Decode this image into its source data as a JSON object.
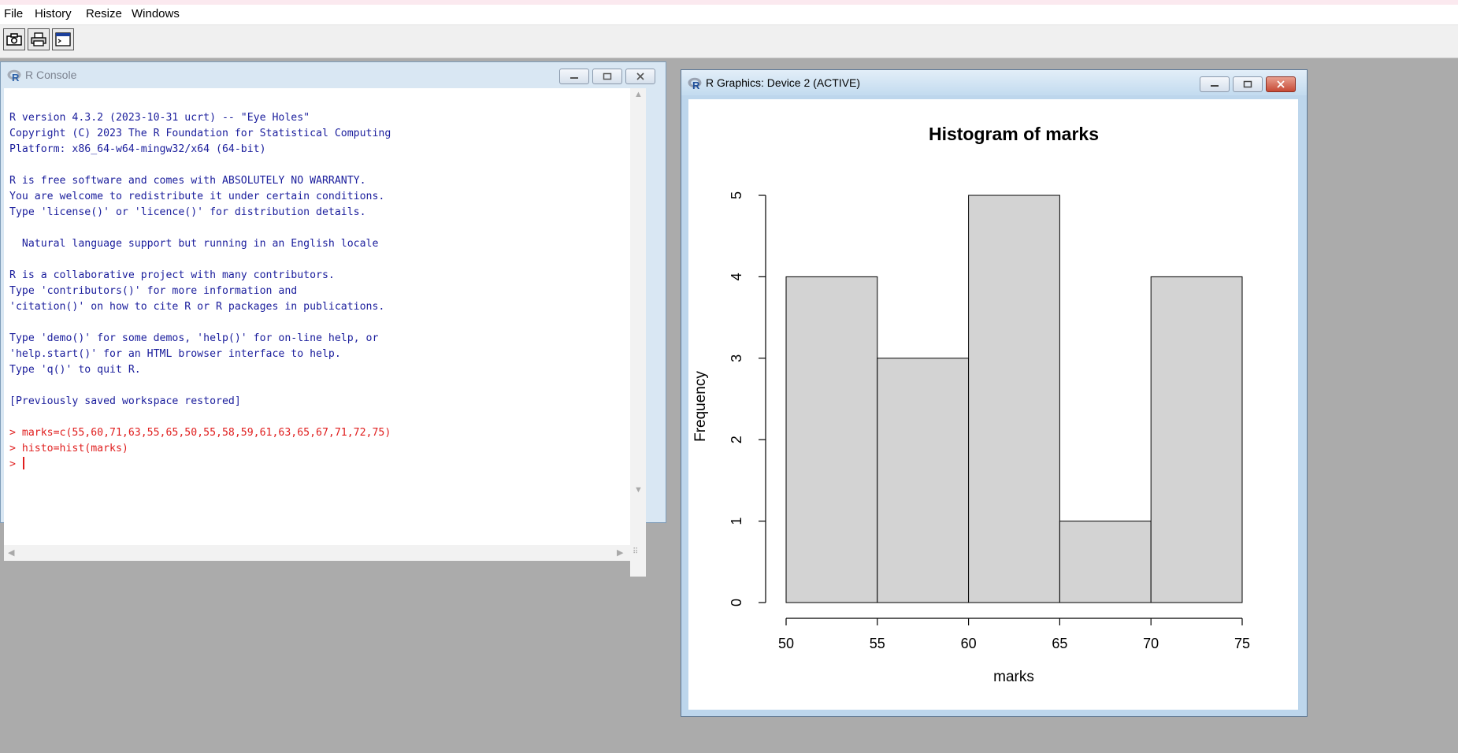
{
  "menu": {
    "file": "File",
    "history": "History",
    "resize": "Resize",
    "windows": "Windows"
  },
  "toolbar": {
    "icons": [
      "camera-icon",
      "print-icon",
      "window-icon"
    ]
  },
  "console": {
    "title": "R Console",
    "lines": [
      {
        "t": "R version 4.3.2 (2023-10-31 ucrt) -- \"Eye Holes\"",
        "k": "out"
      },
      {
        "t": "Copyright (C) 2023 The R Foundation for Statistical Computing",
        "k": "out"
      },
      {
        "t": "Platform: x86_64-w64-mingw32/x64 (64-bit)",
        "k": "out"
      },
      {
        "t": "",
        "k": "out"
      },
      {
        "t": "R is free software and comes with ABSOLUTELY NO WARRANTY.",
        "k": "out"
      },
      {
        "t": "You are welcome to redistribute it under certain conditions.",
        "k": "out"
      },
      {
        "t": "Type 'license()' or 'licence()' for distribution details.",
        "k": "out"
      },
      {
        "t": "",
        "k": "out"
      },
      {
        "t": "  Natural language support but running in an English locale",
        "k": "out"
      },
      {
        "t": "",
        "k": "out"
      },
      {
        "t": "R is a collaborative project with many contributors.",
        "k": "out"
      },
      {
        "t": "Type 'contributors()' for more information and",
        "k": "out"
      },
      {
        "t": "'citation()' on how to cite R or R packages in publications.",
        "k": "out"
      },
      {
        "t": "",
        "k": "out"
      },
      {
        "t": "Type 'demo()' for some demos, 'help()' for on-line help, or",
        "k": "out"
      },
      {
        "t": "'help.start()' for an HTML browser interface to help.",
        "k": "out"
      },
      {
        "t": "Type 'q()' to quit R.",
        "k": "out"
      },
      {
        "t": "",
        "k": "out"
      },
      {
        "t": "[Previously saved workspace restored]",
        "k": "out"
      },
      {
        "t": "",
        "k": "out"
      },
      {
        "t": "> marks=c(55,60,71,63,55,65,50,55,58,59,61,63,65,67,71,72,75)",
        "k": "cmd"
      },
      {
        "t": "> histo=hist(marks)",
        "k": "cmd"
      },
      {
        "t": "> ",
        "k": "cmd",
        "cursor": true
      }
    ]
  },
  "graphics": {
    "title": "R Graphics: Device 2 (ACTIVE)"
  },
  "colors": {
    "console_output": "#1a1d9c",
    "console_command": "#e01e1e",
    "bar_fill": "#d3d3d3",
    "desktop": "#ababab"
  },
  "chart_data": {
    "type": "bar",
    "title": "Histogram of marks",
    "xlabel": "marks",
    "ylabel": "Frequency",
    "bins": [
      [
        50,
        55
      ],
      [
        55,
        60
      ],
      [
        60,
        65
      ],
      [
        65,
        70
      ],
      [
        70,
        75
      ]
    ],
    "values": [
      4,
      3,
      5,
      1,
      4
    ],
    "xticks": [
      "50",
      "55",
      "60",
      "65",
      "70",
      "75"
    ],
    "yticks": [
      "0",
      "1",
      "2",
      "3",
      "4",
      "5"
    ],
    "xlim": [
      50,
      75
    ],
    "ylim": [
      0,
      5
    ],
    "grid": false
  }
}
